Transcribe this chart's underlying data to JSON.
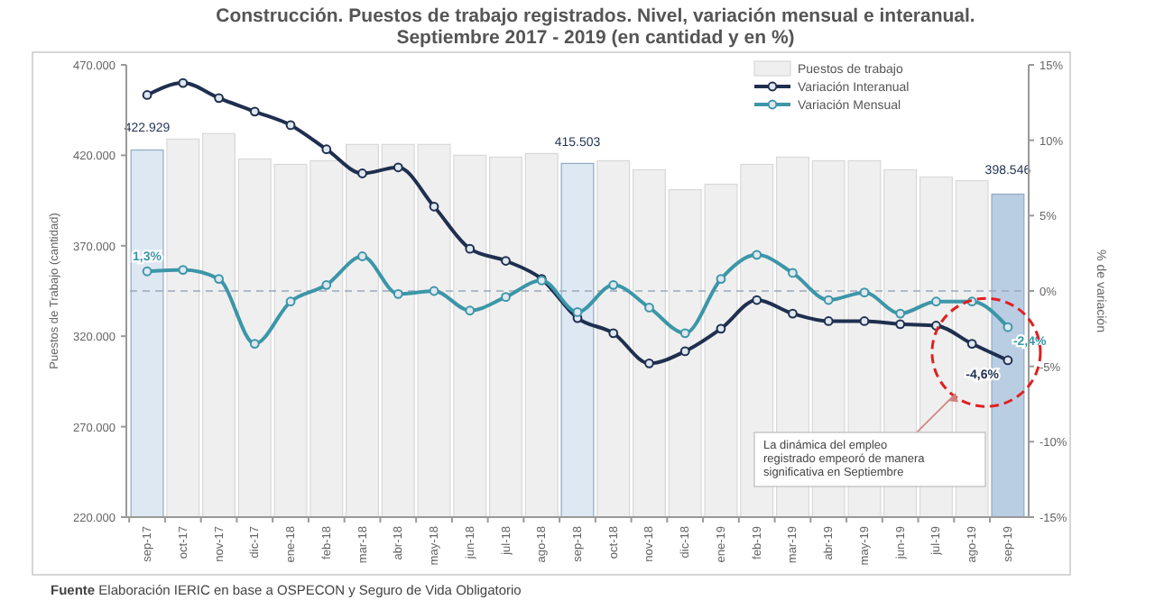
{
  "chart_data": {
    "type": "bar",
    "title": "Construcción. Puestos de trabajo registrados. Nivel, variación mensual e interanual.",
    "subtitle": "Septiembre 2017 - 2019 (en cantidad y en %)",
    "ylabel": "Puestos de Trabajo (cantidad)",
    "y2label": "% de variación",
    "categories": [
      "sep-17",
      "oct-17",
      "nov-17",
      "dic-17",
      "ene-18",
      "feb-18",
      "mar-18",
      "abr-18",
      "may-18",
      "jun-18",
      "jul-18",
      "ago-18",
      "sep-18",
      "oct-18",
      "nov-18",
      "dic-18",
      "ene-19",
      "feb-19",
      "mar-19",
      "abr-19",
      "may-19",
      "jun-19",
      "jul-19",
      "ago-19",
      "sep-19"
    ],
    "series": [
      {
        "name": "Puestos de trabajo",
        "color": "#efefef",
        "colors": [
          "#dde8f3",
          "#efefef",
          "#efefef",
          "#efefef",
          "#efefef",
          "#efefef",
          "#efefef",
          "#efefef",
          "#efefef",
          "#efefef",
          "#efefef",
          "#efefef",
          "#dde8f3",
          "#efefef",
          "#efefef",
          "#efefef",
          "#efefef",
          "#efefef",
          "#efefef",
          "#efefef",
          "#efefef",
          "#efefef",
          "#efefef",
          "#efefef",
          "#b9cde3"
        ],
        "values": [
          422929,
          429000,
          432000,
          418000,
          415000,
          417000,
          426000,
          426000,
          426000,
          420000,
          419000,
          421000,
          415503,
          417000,
          412000,
          401000,
          404000,
          415000,
          419000,
          417000,
          417000,
          412000,
          408000,
          406000,
          398546
        ],
        "value_labels": [
          "422.929",
          null,
          null,
          null,
          null,
          null,
          null,
          null,
          null,
          null,
          null,
          null,
          "415.503",
          null,
          null,
          null,
          null,
          null,
          null,
          null,
          null,
          null,
          null,
          null,
          "398.546"
        ]
      },
      {
        "name": "Variación Interanual",
        "type": "line",
        "axis": "y2",
        "color": "#1f2f4f",
        "values": [
          13.0,
          13.8,
          12.8,
          11.9,
          11.0,
          9.4,
          7.8,
          8.2,
          5.6,
          2.8,
          2.0,
          0.8,
          -1.8,
          -2.8,
          -4.8,
          -4.0,
          -2.5,
          -0.6,
          -1.5,
          -2.0,
          -2.0,
          -2.2,
          -2.3,
          -3.5,
          -4.6
        ],
        "value_labels": [
          null,
          null,
          null,
          null,
          null,
          null,
          null,
          null,
          null,
          null,
          null,
          null,
          null,
          null,
          null,
          null,
          null,
          null,
          null,
          null,
          null,
          null,
          null,
          null,
          "-4,6%"
        ]
      },
      {
        "name": "Variación Mensual",
        "type": "line",
        "axis": "y2",
        "color": "#3c96a8",
        "values": [
          1.3,
          1.4,
          0.8,
          -3.5,
          -0.7,
          0.4,
          2.3,
          -0.2,
          0.0,
          -1.3,
          -0.4,
          0.7,
          -1.4,
          0.4,
          -1.1,
          -2.8,
          0.8,
          2.4,
          1.2,
          -0.6,
          -0.1,
          -1.5,
          -0.7,
          -0.7,
          -2.4
        ],
        "value_labels": [
          "1,3%",
          null,
          null,
          null,
          null,
          null,
          null,
          null,
          null,
          null,
          null,
          null,
          null,
          null,
          null,
          null,
          null,
          null,
          null,
          null,
          null,
          null,
          null,
          null,
          "-2,4%"
        ]
      }
    ],
    "ylim": [
      220000,
      470000
    ],
    "yticks": [
      {
        "value": 220000,
        "label": "220.000"
      },
      {
        "value": 270000,
        "label": "270.000"
      },
      {
        "value": 320000,
        "label": "320.000"
      },
      {
        "value": 370000,
        "label": "370.000"
      },
      {
        "value": 420000,
        "label": "420.000"
      },
      {
        "value": 470000,
        "label": "470.000"
      }
    ],
    "y2lim": [
      -15,
      15
    ],
    "y2ticks": [
      {
        "value": -15,
        "label": "-15%"
      },
      {
        "value": -10,
        "label": "-10%"
      },
      {
        "value": -5,
        "label": "-5%"
      },
      {
        "value": 0,
        "label": "0%"
      },
      {
        "value": 5,
        "label": "5%"
      },
      {
        "value": 10,
        "label": "10%"
      },
      {
        "value": 15,
        "label": "15%"
      }
    ],
    "ref_lines": [
      {
        "axis": "y2",
        "value": 0,
        "color": "#9aa8b8",
        "line_style": "dashed"
      }
    ],
    "marker": "circle",
    "legend": "top right",
    "grid": false,
    "annotations": [
      "La dinámica del empleo registrado empeoró de manera significativa en Septiembre",
      "Fuente Elaboración IERIC en base a OSPECON y Seguro de Vida Obligatorio"
    ]
  }
}
